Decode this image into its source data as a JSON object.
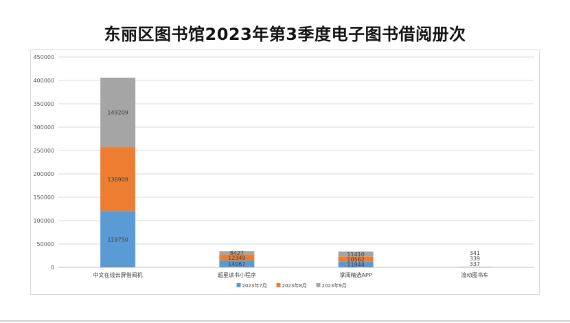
{
  "chart_data": {
    "type": "bar",
    "stacked": true,
    "title": "东丽区图书馆2023年第3季度电子图书借阅册次",
    "categories": [
      "中文在线云屏借阅机",
      "超星读书小程序",
      "掌阅精选APP",
      "流动图书车"
    ],
    "series": [
      {
        "name": "2023年7月",
        "color": "#5b9bd5",
        "values": [
          119750,
          14067,
          11944,
          337
        ]
      },
      {
        "name": "2023年8月",
        "color": "#ed7d31",
        "values": [
          136909,
          12349,
          10562,
          339
        ]
      },
      {
        "name": "2023年9月",
        "color": "#a5a5a5",
        "values": [
          149209,
          8427,
          11410,
          341
        ]
      }
    ],
    "ylim": [
      0,
      450000
    ],
    "yticks": [
      "0",
      "50000",
      "100000",
      "150000",
      "200000",
      "250000",
      "300000",
      "350000",
      "400000",
      "450000"
    ],
    "grid": true,
    "legend_position": "bottom"
  }
}
